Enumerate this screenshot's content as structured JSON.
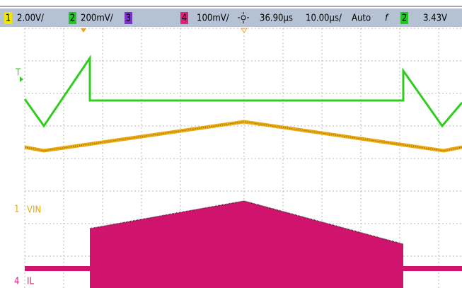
{
  "header": {
    "ch1_number": "1",
    "ch1_scale": "2.00V/",
    "ch2_number": "2",
    "ch2_scale": "200mV/",
    "ch3_number": "3",
    "ch4_number": "4",
    "ch4_scale": "100mV/",
    "delay": "36.90µs",
    "timebase": "10.00µs/",
    "trigger_mode": "Auto",
    "trigger_slope": "f",
    "trigger_source": "2",
    "trigger_level": "3.43V"
  },
  "screen": {
    "vin_label": "VIN",
    "il_label": "IL",
    "il_marker": "4",
    "vin_marker": "1",
    "trigger_marker": "T"
  }
}
